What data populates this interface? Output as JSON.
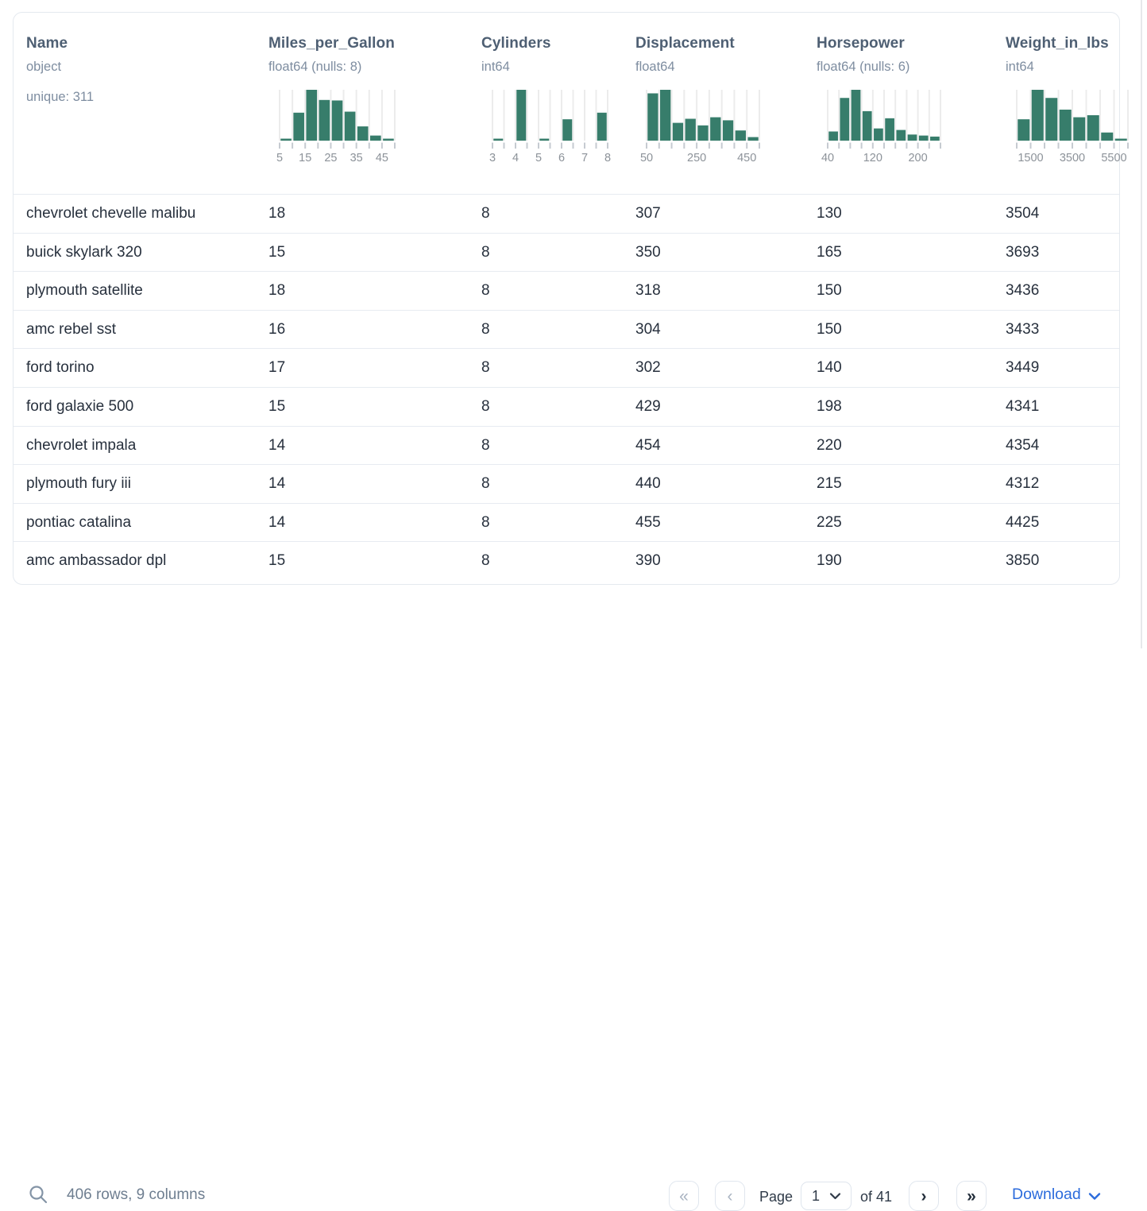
{
  "table": {
    "columns": [
      {
        "title": "Name",
        "dtype": "object",
        "note": "unique: 311"
      },
      {
        "title": "Miles_per_Gallon",
        "dtype": "float64 (nulls: 8)",
        "histogram": {
          "type": "histogram",
          "width": 145,
          "bins_pct": [
            3,
            55,
            100,
            80,
            79,
            57,
            28,
            10,
            3
          ],
          "tick_labels": [
            {
              "tick": 0,
              "text": "5"
            },
            {
              "tick": 2,
              "text": "15"
            },
            {
              "tick": 4,
              "text": "25"
            },
            {
              "tick": 6,
              "text": "35"
            },
            {
              "tick": 8,
              "text": "45"
            }
          ]
        }
      },
      {
        "title": "Cylinders",
        "dtype": "int64",
        "histogram": {
          "type": "histogram",
          "width": 145,
          "bins_pct": [
            3,
            0,
            100,
            0,
            3,
            0,
            42,
            0,
            0,
            55
          ],
          "tick_labels": [
            {
              "tick": 0,
              "text": "3"
            },
            {
              "tick": 2,
              "text": "4"
            },
            {
              "tick": 4,
              "text": "5"
            },
            {
              "tick": 6,
              "text": "6"
            },
            {
              "tick": 8,
              "text": "7"
            },
            {
              "tick": 10,
              "text": "8"
            }
          ]
        }
      },
      {
        "title": "Displacement",
        "dtype": "float64",
        "histogram": {
          "type": "histogram",
          "width": 142,
          "bins_pct": [
            93,
            100,
            35,
            43,
            30,
            46,
            40,
            20,
            7
          ],
          "tick_labels": [
            {
              "tick": 0,
              "text": "50"
            },
            {
              "tick": 4,
              "text": "250"
            },
            {
              "tick": 8,
              "text": "450"
            }
          ]
        }
      },
      {
        "title": "Horsepower",
        "dtype": "float64 (nulls: 6)",
        "histogram": {
          "type": "histogram",
          "width": 142,
          "bins_pct": [
            18,
            84,
            100,
            58,
            24,
            44,
            21,
            12,
            10,
            8
          ],
          "tick_labels": [
            {
              "tick": 0,
              "text": "40"
            },
            {
              "tick": 4,
              "text": "120"
            },
            {
              "tick": 8,
              "text": "200"
            }
          ]
        }
      },
      {
        "title": "Weight_in_lbs",
        "dtype": "int64",
        "histogram": {
          "type": "histogram",
          "width": 140,
          "bins_pct": [
            42,
            100,
            84,
            61,
            46,
            50,
            16,
            3
          ],
          "tick_labels": [
            {
              "tick": 1,
              "text": "1500"
            },
            {
              "tick": 4,
              "text": "3500"
            },
            {
              "tick": 7,
              "text": "5500"
            }
          ]
        }
      }
    ],
    "rows": [
      [
        "chevrolet chevelle malibu",
        "18",
        "8",
        "307",
        "130",
        "3504"
      ],
      [
        "buick skylark 320",
        "15",
        "8",
        "350",
        "165",
        "3693"
      ],
      [
        "plymouth satellite",
        "18",
        "8",
        "318",
        "150",
        "3436"
      ],
      [
        "amc rebel sst",
        "16",
        "8",
        "304",
        "150",
        "3433"
      ],
      [
        "ford torino",
        "17",
        "8",
        "302",
        "140",
        "3449"
      ],
      [
        "ford galaxie 500",
        "15",
        "8",
        "429",
        "198",
        "4341"
      ],
      [
        "chevrolet impala",
        "14",
        "8",
        "454",
        "220",
        "4354"
      ],
      [
        "plymouth fury iii",
        "14",
        "8",
        "440",
        "215",
        "4312"
      ],
      [
        "pontiac catalina",
        "14",
        "8",
        "455",
        "225",
        "4425"
      ],
      [
        "amc ambassador dpl",
        "15",
        "8",
        "390",
        "190",
        "3850"
      ]
    ]
  },
  "footer": {
    "status": "406 rows, 9 columns",
    "pagination": {
      "first_glyph": "«",
      "prev_glyph": "‹",
      "next_glyph": "›",
      "last_glyph": "»",
      "page_label": "Page",
      "page_value": "1",
      "of_label": "of 41"
    },
    "download_label": "Download"
  },
  "colors": {
    "hist_bar": "#377d6b",
    "hist_gridline": "#ececec",
    "hist_tick": "#c6cbd1",
    "hist_tick_label": "#8c9299",
    "accent_blue": "#2b6bdc",
    "header_title": "#4e5f73",
    "row_text": "#27303d"
  }
}
